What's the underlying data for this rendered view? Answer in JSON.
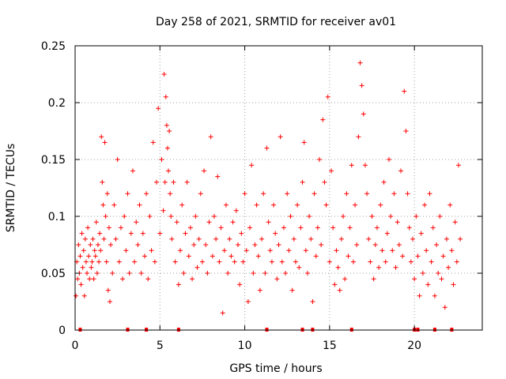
{
  "chart_data": {
    "type": "scatter",
    "title": "Day 258 of 2021, SRMTID for receiver av01",
    "xlabel": "GPS time / hours",
    "ylabel": "SRMTID / TECUs",
    "xlim": [
      0,
      24
    ],
    "ylim": [
      0,
      0.25
    ],
    "xticks": [
      0,
      5,
      10,
      15,
      20
    ],
    "xtick_labels": [
      "0",
      "5",
      "10",
      "15",
      "20"
    ],
    "yticks": [
      0,
      0.05,
      0.1,
      0.15,
      0.2,
      0.25
    ],
    "ytick_labels": [
      "0",
      "0.05",
      "0.1",
      "0.15",
      "0.2",
      "0.25"
    ],
    "grid": true,
    "marker": "+",
    "series": [
      {
        "name": "SRMTID",
        "color": "#ff0000",
        "x": [
          0.05,
          0.1,
          0.15,
          0.2,
          0.25,
          0.3,
          0.35,
          0.4,
          0.45,
          0.5,
          0.55,
          0.6,
          0.65,
          0.7,
          0.75,
          0.8,
          0.85,
          0.9,
          0.95,
          1.0,
          1.05,
          1.1,
          1.15,
          1.2,
          1.25,
          1.3,
          1.35,
          1.4,
          1.45,
          1.5,
          1.55,
          1.6,
          1.65,
          1.7,
          1.75,
          1.8,
          1.85,
          1.9,
          1.95,
          2.0,
          2.05,
          2.1,
          2.2,
          2.3,
          2.4,
          2.5,
          2.6,
          2.7,
          2.8,
          2.9,
          3.0,
          3.1,
          3.2,
          3.3,
          3.4,
          3.5,
          3.6,
          3.7,
          3.8,
          3.9,
          4.0,
          4.1,
          4.2,
          4.3,
          4.4,
          4.5,
          4.6,
          4.7,
          4.8,
          4.9,
          5.0,
          5.1,
          5.2,
          5.25,
          5.3,
          5.35,
          5.4,
          5.45,
          5.5,
          5.55,
          5.6,
          5.65,
          5.7,
          5.8,
          5.9,
          6.0,
          6.1,
          6.2,
          6.3,
          6.4,
          6.5,
          6.6,
          6.7,
          6.8,
          6.9,
          7.0,
          7.1,
          7.2,
          7.3,
          7.4,
          7.5,
          7.6,
          7.7,
          7.8,
          7.9,
          8.0,
          8.1,
          8.2,
          8.3,
          8.4,
          8.5,
          8.6,
          8.7,
          8.8,
          8.9,
          9.0,
          9.1,
          9.2,
          9.3,
          9.4,
          9.5,
          9.6,
          9.7,
          9.8,
          9.9,
          10.0,
          10.1,
          10.2,
          10.3,
          10.4,
          10.5,
          10.6,
          10.7,
          10.8,
          10.9,
          11.0,
          11.1,
          11.2,
          11.3,
          11.4,
          11.5,
          11.6,
          11.7,
          11.8,
          11.9,
          12.0,
          12.1,
          12.2,
          12.3,
          12.4,
          12.5,
          12.6,
          12.7,
          12.8,
          12.9,
          13.0,
          13.1,
          13.2,
          13.3,
          13.4,
          13.5,
          13.6,
          13.7,
          13.8,
          13.9,
          14.0,
          14.1,
          14.2,
          14.3,
          14.4,
          14.5,
          14.6,
          14.7,
          14.8,
          14.9,
          15.0,
          15.1,
          15.2,
          15.3,
          15.4,
          15.5,
          15.6,
          15.7,
          15.8,
          15.9,
          16.0,
          16.1,
          16.2,
          16.3,
          16.4,
          16.5,
          16.6,
          16.7,
          16.8,
          16.9,
          17.0,
          17.1,
          17.2,
          17.3,
          17.4,
          17.5,
          17.6,
          17.7,
          17.8,
          17.9,
          18.0,
          18.1,
          18.2,
          18.3,
          18.4,
          18.5,
          18.6,
          18.7,
          18.8,
          18.9,
          19.0,
          19.1,
          19.2,
          19.3,
          19.4,
          19.5,
          19.6,
          19.7,
          19.8,
          19.9,
          20.0,
          20.1,
          20.2,
          20.3,
          20.4,
          20.5,
          20.6,
          20.7,
          20.8,
          20.9,
          21.0,
          21.1,
          21.2,
          21.3,
          21.4,
          21.5,
          21.6,
          21.7,
          21.8,
          21.9,
          22.0,
          22.1,
          22.2,
          22.3,
          22.4,
          22.5,
          22.6,
          22.7
        ],
        "y": [
          0.03,
          0.06,
          0.045,
          0.075,
          0.05,
          0.065,
          0.04,
          0.085,
          0.055,
          0.07,
          0.03,
          0.08,
          0.06,
          0.05,
          0.09,
          0.065,
          0.045,
          0.075,
          0.055,
          0.06,
          0.08,
          0.045,
          0.07,
          0.065,
          0.095,
          0.05,
          0.075,
          0.06,
          0.085,
          0.07,
          0.17,
          0.13,
          0.11,
          0.08,
          0.165,
          0.1,
          0.06,
          0.12,
          0.035,
          0.09,
          0.025,
          0.075,
          0.05,
          0.11,
          0.08,
          0.15,
          0.06,
          0.09,
          0.045,
          0.1,
          0.07,
          0.12,
          0.05,
          0.085,
          0.14,
          0.06,
          0.095,
          0.075,
          0.11,
          0.05,
          0.085,
          0.065,
          0.12,
          0.045,
          0.1,
          0.07,
          0.165,
          0.06,
          0.13,
          0.195,
          0.085,
          0.15,
          0.105,
          0.225,
          0.13,
          0.205,
          0.18,
          0.16,
          0.14,
          0.175,
          0.12,
          0.1,
          0.08,
          0.13,
          0.06,
          0.095,
          0.04,
          0.07,
          0.11,
          0.05,
          0.085,
          0.13,
          0.065,
          0.09,
          0.045,
          0.075,
          0.1,
          0.055,
          0.08,
          0.12,
          0.06,
          0.14,
          0.075,
          0.05,
          0.095,
          0.17,
          0.065,
          0.1,
          0.08,
          0.135,
          0.06,
          0.09,
          0.015,
          0.07,
          0.11,
          0.05,
          0.08,
          0.065,
          0.095,
          0.06,
          0.105,
          0.075,
          0.04,
          0.085,
          0.06,
          0.12,
          0.07,
          0.025,
          0.09,
          0.145,
          0.05,
          0.075,
          0.11,
          0.065,
          0.035,
          0.08,
          0.12,
          0.05,
          0.16,
          0.095,
          0.07,
          0.06,
          0.11,
          0.085,
          0.045,
          0.075,
          0.17,
          0.06,
          0.09,
          0.05,
          0.12,
          0.07,
          0.1,
          0.035,
          0.08,
          0.06,
          0.11,
          0.055,
          0.09,
          0.13,
          0.165,
          0.07,
          0.05,
          0.1,
          0.08,
          0.025,
          0.12,
          0.065,
          0.09,
          0.15,
          0.075,
          0.185,
          0.13,
          0.11,
          0.205,
          0.06,
          0.14,
          0.09,
          0.04,
          0.07,
          0.055,
          0.035,
          0.08,
          0.1,
          0.045,
          0.12,
          0.065,
          0.09,
          0.145,
          0.06,
          0.11,
          0.075,
          0.17,
          0.235,
          0.215,
          0.19,
          0.145,
          0.12,
          0.08,
          0.06,
          0.1,
          0.045,
          0.075,
          0.09,
          0.055,
          0.11,
          0.07,
          0.13,
          0.06,
          0.085,
          0.15,
          0.1,
          0.07,
          0.12,
          0.055,
          0.095,
          0.075,
          0.14,
          0.065,
          0.21,
          0.175,
          0.12,
          0.09,
          0.06,
          0.08,
          0.045,
          0.1,
          0.065,
          0.03,
          0.085,
          0.05,
          0.11,
          0.07,
          0.04,
          0.12,
          0.06,
          0.09,
          0.03,
          0.075,
          0.05,
          0.1,
          0.045,
          0.065,
          0.02,
          0.08,
          0.055,
          0.11,
          0.07,
          0.04,
          0.095,
          0.06,
          0.145,
          0.08
        ]
      }
    ],
    "zero_markers_x": [
      0.3,
      3.1,
      4.2,
      6.1,
      11.3,
      13.4,
      14.0,
      16.3,
      20.0,
      20.2,
      21.2,
      22.2
    ]
  }
}
